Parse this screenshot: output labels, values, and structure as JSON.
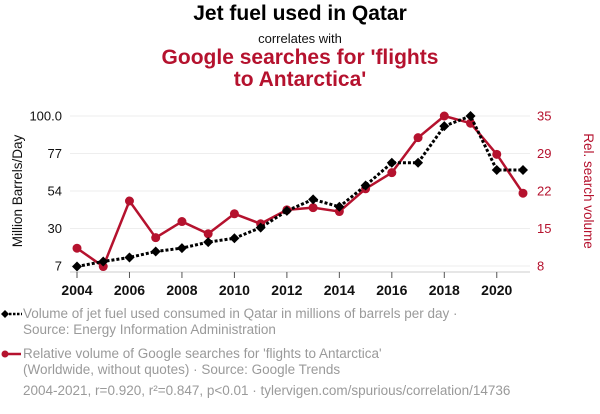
{
  "header": {
    "title": "Jet fuel used in Qatar",
    "subtitle": "correlates with",
    "title2_line1": "Google searches for 'flights",
    "title2_line2": "to Antarctica'"
  },
  "legend": {
    "series1_line1": "Volume of jet fuel used consumed in Qatar in millions of barrels per day ·",
    "series1_line2": "Source: Energy Information Administration",
    "series2_line1": "Relative volume of Google searches for 'flights to Antarctica'",
    "series2_line2": "(Worldwide, without quotes) · Source: Google Trends"
  },
  "footer": "2004-2021, r=0.920, r²=0.847, p<0.01 · tylervigen.com/spurious/correlation/14736",
  "colors": {
    "series1": "#000000",
    "series2": "#b5122e",
    "grid": "#eeeeee",
    "axis_text": "#111111",
    "legend_text": "#9a9a9a"
  },
  "chart_data": {
    "type": "line",
    "title": "Jet fuel used in Qatar correlates with Google searches for 'flights to Antarctica'",
    "xlabel": "",
    "ylabel_left": "Million Barrels/Day",
    "ylabel_right": "Rel. search volume",
    "x": [
      2004,
      2005,
      2006,
      2007,
      2008,
      2009,
      2010,
      2011,
      2012,
      2013,
      2014,
      2015,
      2016,
      2017,
      2018,
      2019,
      2020,
      2021
    ],
    "x_ticks": [
      "2004",
      "2006",
      "2008",
      "2010",
      "2012",
      "2014",
      "2016",
      "2018",
      "2020"
    ],
    "x_range": [
      2004,
      2021
    ],
    "y_left_ticks": [
      "100.0",
      "77",
      "54",
      "30",
      "7"
    ],
    "y_left_range": [
      7,
      100
    ],
    "y_right_ticks": [
      "35",
      "29",
      "22",
      "15",
      "8"
    ],
    "y_right_range": [
      8,
      35
    ],
    "grid": true,
    "legend_placement": "bottom",
    "series": [
      {
        "name": "Volume of jet fuel used consumed in Qatar in millions of barrels per day",
        "axis": "left",
        "style": "dotted-line-diamond",
        "values": [
          6.7,
          9.8,
          12.3,
          16.0,
          18.1,
          21.8,
          24.2,
          30.8,
          41.2,
          48.3,
          43.7,
          56.9,
          71.0,
          71.0,
          93.7,
          100.0,
          66.5,
          66.5
        ]
      },
      {
        "name": "Relative volume of Google searches for 'flights to Antarctica'",
        "axis": "right",
        "style": "solid-line-circle",
        "values": [
          11.2,
          7.9,
          19.7,
          13.1,
          16.0,
          13.8,
          17.4,
          15.6,
          18.1,
          18.5,
          17.8,
          21.9,
          24.8,
          31.1,
          35.0,
          33.7,
          28.1,
          21.1
        ]
      }
    ]
  }
}
